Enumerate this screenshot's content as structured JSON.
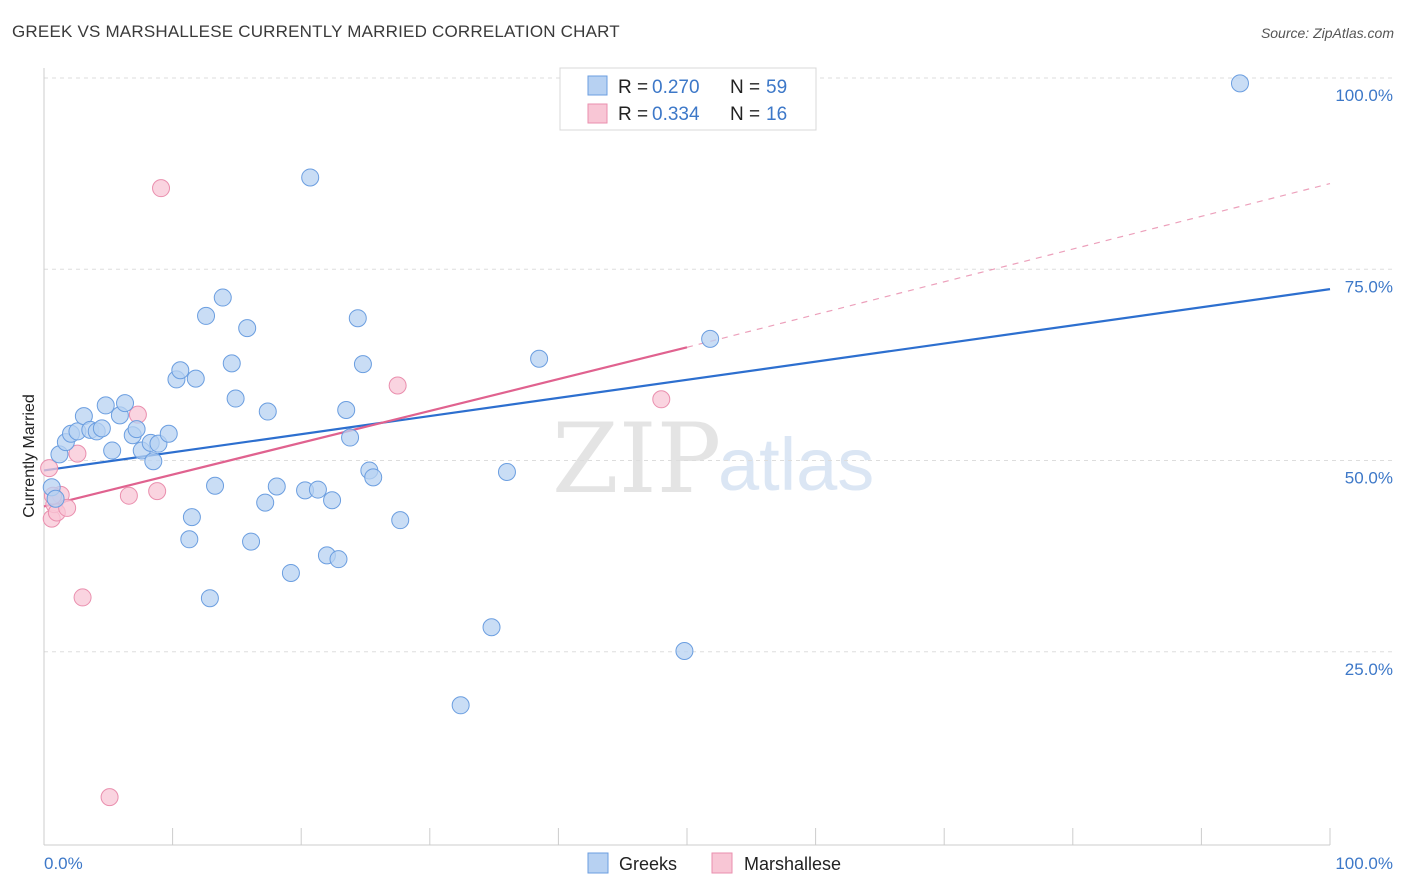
{
  "header": {
    "title": "GREEK VS MARSHALLESE CURRENTLY MARRIED CORRELATION CHART",
    "source": "Source: ZipAtlas.com"
  },
  "watermark": {
    "zip": "ZIP",
    "atlas": "atlas"
  },
  "legend": {
    "rows": [
      {
        "r_label": "R =",
        "r_value": "0.270",
        "n_label": "N =",
        "n_value": "59",
        "color": "#a9c8f0"
      },
      {
        "r_label": "R =",
        "r_value": "0.334",
        "n_label": "N =",
        "n_value": "16",
        "color": "#f6b7c9"
      }
    ]
  },
  "bottom_legend": [
    {
      "label": "Greeks",
      "color": "#a9c8f0"
    },
    {
      "label": "Marshallese",
      "color": "#f6b7c9"
    }
  ],
  "colors": {
    "greeks_fill": "#b7d1f2",
    "greeks_stroke": "#6b9ee0",
    "greeks_line": "#2d6fcf",
    "marshallese_fill": "#f8c6d5",
    "marshallese_stroke": "#ea8fae",
    "marshallese_line": "#e0628f",
    "tick_text": "#3d78c8",
    "grid": "#dddddd"
  },
  "chart_data": {
    "type": "scatter",
    "xlabel": "",
    "ylabel": "Currently Married",
    "xlim": [
      0,
      100
    ],
    "ylim": [
      0,
      100
    ],
    "x_tick_labels": [
      "0.0%",
      "100.0%"
    ],
    "y_ticks": [
      25,
      50,
      75,
      100
    ],
    "y_tick_labels": [
      "25.0%",
      "50.0%",
      "75.0%",
      "100.0%"
    ],
    "grid": true,
    "legend_position": "top-center",
    "series": [
      {
        "name": "Greeks",
        "points": [
          [
            0.6,
            46.5
          ],
          [
            0.9,
            45.0
          ],
          [
            1.2,
            50.8
          ],
          [
            1.7,
            52.4
          ],
          [
            2.1,
            53.5
          ],
          [
            2.6,
            53.8
          ],
          [
            3.1,
            55.8
          ],
          [
            3.6,
            54.0
          ],
          [
            4.1,
            53.8
          ],
          [
            4.5,
            54.2
          ],
          [
            4.8,
            57.2
          ],
          [
            5.3,
            51.3
          ],
          [
            5.9,
            55.9
          ],
          [
            6.3,
            57.5
          ],
          [
            6.9,
            53.3
          ],
          [
            7.2,
            54.1
          ],
          [
            7.6,
            51.3
          ],
          [
            8.3,
            52.3
          ],
          [
            8.5,
            49.9
          ],
          [
            8.9,
            52.2
          ],
          [
            9.7,
            53.5
          ],
          [
            10.3,
            60.6
          ],
          [
            10.6,
            61.8
          ],
          [
            11.3,
            39.7
          ],
          [
            11.5,
            42.6
          ],
          [
            11.8,
            60.7
          ],
          [
            12.6,
            68.9
          ],
          [
            12.9,
            32.0
          ],
          [
            13.3,
            46.7
          ],
          [
            13.9,
            71.3
          ],
          [
            14.6,
            62.7
          ],
          [
            14.9,
            58.1
          ],
          [
            15.8,
            67.3
          ],
          [
            16.1,
            39.4
          ],
          [
            17.2,
            44.5
          ],
          [
            17.4,
            56.4
          ],
          [
            18.1,
            46.6
          ],
          [
            19.2,
            35.3
          ],
          [
            20.3,
            46.1
          ],
          [
            20.7,
            87.0
          ],
          [
            21.3,
            46.2
          ],
          [
            22.0,
            37.6
          ],
          [
            22.4,
            44.8
          ],
          [
            22.9,
            37.1
          ],
          [
            23.5,
            56.6
          ],
          [
            23.8,
            53.0
          ],
          [
            24.4,
            68.6
          ],
          [
            24.8,
            62.6
          ],
          [
            25.3,
            48.7
          ],
          [
            25.6,
            47.8
          ],
          [
            27.7,
            42.2
          ],
          [
            32.4,
            18.0
          ],
          [
            34.8,
            28.2
          ],
          [
            36.0,
            48.5
          ],
          [
            38.5,
            63.3
          ],
          [
            49.8,
            25.1
          ],
          [
            51.8,
            65.9
          ],
          [
            56.1,
            100.0
          ],
          [
            93.0,
            99.3
          ]
        ]
      },
      {
        "name": "Marshallese",
        "points": [
          [
            0.4,
            49.0
          ],
          [
            0.6,
            42.4
          ],
          [
            0.8,
            44.3
          ],
          [
            1.0,
            43.2
          ],
          [
            1.3,
            45.5
          ],
          [
            1.8,
            43.8
          ],
          [
            2.6,
            50.9
          ],
          [
            3.0,
            32.1
          ],
          [
            5.1,
            6.0
          ],
          [
            6.6,
            45.4
          ],
          [
            7.3,
            56.0
          ],
          [
            8.8,
            46.0
          ],
          [
            9.1,
            85.6
          ],
          [
            27.5,
            59.8
          ],
          [
            48.0,
            58.0
          ],
          [
            0.7,
            45.4
          ]
        ]
      }
    ],
    "trend_lines": [
      {
        "name": "Greeks",
        "x": [
          0,
          100
        ],
        "y": [
          48.7,
          72.4
        ]
      },
      {
        "name": "Marshallese",
        "x": [
          0,
          50
        ],
        "y": [
          44.0,
          64.8
        ],
        "dashed_extension_to": [
          100,
          86.2
        ]
      }
    ]
  }
}
